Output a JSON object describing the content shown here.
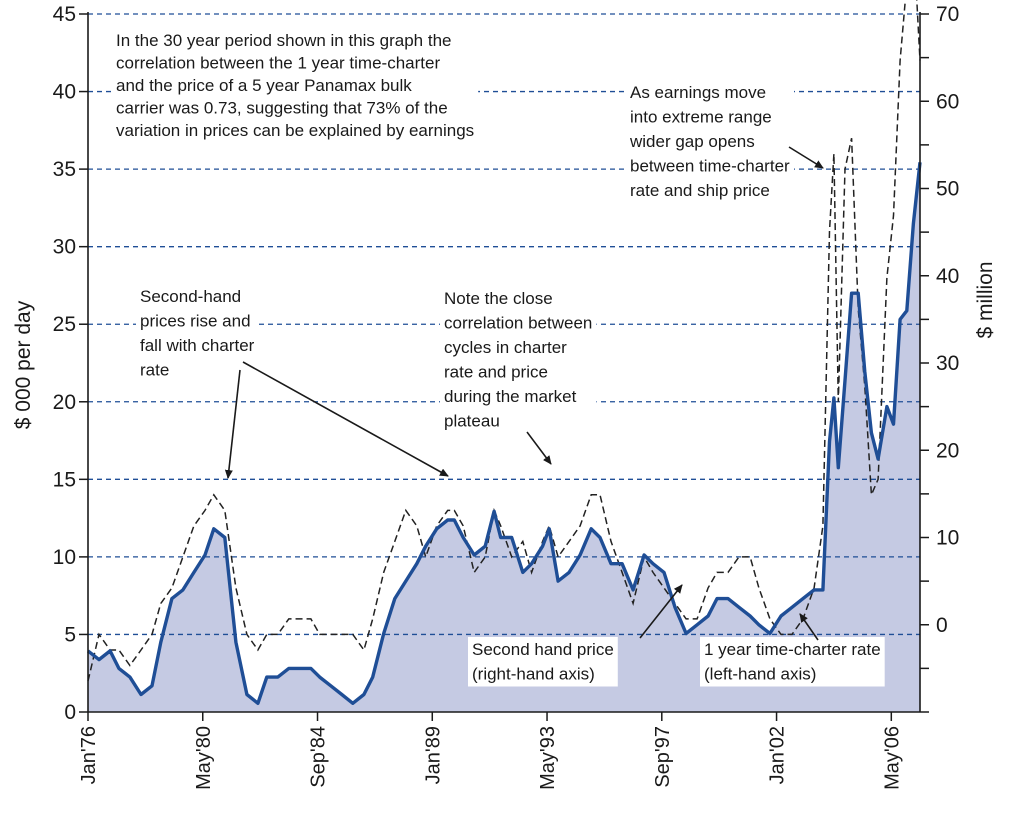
{
  "chart_data": {
    "type": "line",
    "xlabel": "",
    "ylabel_left": "$ 000 per day",
    "ylabel_right": "$ million",
    "x_ticks": [
      "Jan'76",
      "May'80",
      "Sep'84",
      "Jan'89",
      "May'93",
      "Sep'97",
      "Jan'02",
      "May'06"
    ],
    "x_range": [
      "1976-01",
      "2007-06"
    ],
    "ylim_left": [
      0,
      45
    ],
    "ylim_right": [
      -10,
      70
    ],
    "y_ticks_left": [
      "0",
      "5",
      "10",
      "15",
      "20",
      "25",
      "30",
      "35",
      "40",
      "45"
    ],
    "y_ticks_right": [
      "0",
      "10",
      "20",
      "30",
      "40",
      "50",
      "60",
      "70"
    ],
    "grid": true,
    "colors": {
      "price_line": "#1f4e96",
      "price_fill": "#c5cae3",
      "charter_line": "#222222",
      "grid": "#1f4e96"
    },
    "series": [
      {
        "name": "Second hand price (right-hand axis)",
        "axis": "right",
        "style": "solid",
        "x": [
          "1976-01",
          "1976-06",
          "1976-11",
          "1977-03",
          "1977-08",
          "1978-01",
          "1978-06",
          "1978-10",
          "1979-03",
          "1979-08",
          "1980-01",
          "1980-06",
          "1980-10",
          "1981-03",
          "1981-08",
          "1982-01",
          "1982-06",
          "1982-10",
          "1983-03",
          "1983-08",
          "1984-01",
          "1984-06",
          "1984-10",
          "1985-03",
          "1985-08",
          "1986-01",
          "1986-06",
          "1986-10",
          "1987-03",
          "1987-08",
          "1988-01",
          "1988-06",
          "1988-10",
          "1989-03",
          "1989-08",
          "1989-11",
          "1990-03",
          "1990-08",
          "1991-01",
          "1991-05",
          "1991-08",
          "1992-01",
          "1992-06",
          "1992-10",
          "1993-03",
          "1993-06",
          "1993-10",
          "1994-03",
          "1994-08",
          "1995-01",
          "1995-05",
          "1995-10",
          "1996-03",
          "1996-08",
          "1997-01",
          "1997-05",
          "1997-10",
          "1998-03",
          "1998-08",
          "1999-01",
          "1999-06",
          "1999-10",
          "2000-03",
          "2000-08",
          "2001-01",
          "2001-05",
          "2001-10",
          "2002-03",
          "2002-08",
          "2003-01",
          "2003-06",
          "2003-10",
          "2004-01",
          "2004-03",
          "2004-05",
          "2004-08",
          "2004-11",
          "2005-02",
          "2005-05",
          "2005-08",
          "2005-11",
          "2006-03",
          "2006-06",
          "2006-09",
          "2006-12",
          "2007-03",
          "2007-06"
        ],
        "values": [
          -3,
          -4,
          -3,
          -5,
          -6,
          -8,
          -7,
          -2,
          3,
          4,
          6,
          8,
          11,
          10,
          -2,
          -8,
          -9,
          -6,
          -6,
          -5,
          -5,
          -5,
          -6,
          -7,
          -8,
          -9,
          -8,
          -6,
          -1,
          3,
          5,
          7,
          9,
          11,
          12,
          12,
          10,
          8,
          9,
          13,
          10,
          10,
          6,
          7,
          9,
          11,
          5,
          6,
          8,
          11,
          10,
          7,
          7,
          4,
          8,
          7,
          6,
          2,
          -1,
          0,
          1,
          3,
          3,
          2,
          1,
          0,
          -1,
          1,
          2,
          3,
          4,
          4,
          21,
          26,
          18,
          28,
          38,
          38,
          29,
          22,
          19,
          25,
          23,
          35,
          36,
          46,
          53
        ]
      },
      {
        "name": "1 year time-charter rate (left-hand axis)",
        "axis": "left",
        "style": "dashed",
        "x": [
          "1976-01",
          "1976-06",
          "1976-11",
          "1977-03",
          "1977-08",
          "1978-01",
          "1978-06",
          "1978-10",
          "1979-03",
          "1979-08",
          "1980-01",
          "1980-06",
          "1980-10",
          "1981-03",
          "1981-08",
          "1982-01",
          "1982-06",
          "1982-10",
          "1983-03",
          "1983-08",
          "1984-01",
          "1984-06",
          "1984-10",
          "1985-03",
          "1985-08",
          "1986-01",
          "1986-06",
          "1986-10",
          "1987-03",
          "1987-08",
          "1988-01",
          "1988-06",
          "1988-10",
          "1989-03",
          "1989-08",
          "1989-11",
          "1990-03",
          "1990-08",
          "1991-01",
          "1991-05",
          "1991-08",
          "1992-01",
          "1992-06",
          "1992-10",
          "1993-03",
          "1993-06",
          "1993-10",
          "1994-03",
          "1994-08",
          "1995-01",
          "1995-05",
          "1995-10",
          "1996-03",
          "1996-08",
          "1997-01",
          "1997-05",
          "1997-10",
          "1998-03",
          "1998-08",
          "1999-01",
          "1999-06",
          "1999-10",
          "2000-03",
          "2000-08",
          "2001-01",
          "2001-05",
          "2001-10",
          "2002-03",
          "2002-08",
          "2003-01",
          "2003-06",
          "2003-10",
          "2004-01",
          "2004-03",
          "2004-05",
          "2004-08",
          "2004-11",
          "2005-02",
          "2005-05",
          "2005-08",
          "2005-11",
          "2006-03",
          "2006-06",
          "2006-09",
          "2006-12",
          "2007-03",
          "2007-06"
        ],
        "values": [
          2,
          5,
          4,
          4,
          3,
          4,
          5,
          7,
          8,
          10,
          12,
          13,
          14,
          13,
          8,
          5,
          4,
          5,
          5,
          6,
          6,
          6,
          5,
          5,
          5,
          5,
          4,
          6,
          9,
          11,
          13,
          12,
          10,
          12,
          13,
          13,
          12,
          9,
          10,
          13,
          12,
          10,
          11,
          9,
          11,
          12,
          10,
          11,
          12,
          14,
          14,
          11,
          9,
          7,
          10,
          9,
          8,
          7,
          6,
          6,
          8,
          9,
          9,
          10,
          10,
          8,
          6,
          5,
          5,
          6,
          8,
          12,
          31,
          36,
          20,
          35,
          37,
          26,
          21,
          14,
          15,
          28,
          32,
          42,
          47,
          50,
          42
        ]
      }
    ],
    "annotations": [
      [
        "In the 30 year period shown in this graph the",
        "correlation between the 1 year time-charter",
        "and the price of a 5 year Panamax bulk",
        "carrier was 0.73, suggesting that 73% of the",
        "variation in prices can be explained by earnings"
      ],
      [
        "As earnings move",
        "into extreme range",
        "wider gap opens",
        "between time-charter",
        "rate and ship price"
      ],
      [
        "Second-hand",
        "prices rise and",
        "fall with charter",
        "rate"
      ],
      [
        "Note the close",
        "correlation between",
        "cycles in charter",
        "rate and price",
        "during the market",
        "plateau"
      ],
      [
        "Second hand price",
        "(right-hand axis)"
      ],
      [
        "1 year time-charter rate",
        "(left-hand axis)"
      ]
    ]
  }
}
